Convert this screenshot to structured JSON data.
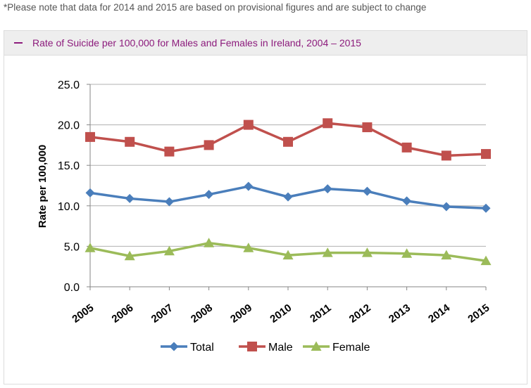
{
  "note": "*Please note that data for 2014 and 2015 are based on provisional figures and are subject to change",
  "panel": {
    "title": "Rate of Suicide per 100,000 for Males and Females in Ireland, 2004 – 2015"
  },
  "icons": {
    "collapse": "minus-icon"
  },
  "colors": {
    "accent": "#8c1b7c",
    "total": "#4a7ebb",
    "male": "#c0504d",
    "female": "#9bbb59"
  },
  "chart_data": {
    "type": "line",
    "x": [
      "2005",
      "2006",
      "2007",
      "2008",
      "2009",
      "2010",
      "2011",
      "2012",
      "2013",
      "2014",
      "2015"
    ],
    "series": [
      {
        "name": "Total",
        "marker": "diamond",
        "color": "#4a7ebb",
        "values": [
          11.6,
          10.9,
          10.5,
          11.4,
          12.4,
          11.1,
          12.1,
          11.8,
          10.6,
          9.9,
          9.7
        ]
      },
      {
        "name": "Male",
        "marker": "square",
        "color": "#c0504d",
        "values": [
          18.5,
          17.9,
          16.7,
          17.5,
          20.0,
          17.9,
          20.2,
          19.7,
          17.2,
          16.2,
          16.4
        ]
      },
      {
        "name": "Female",
        "marker": "triangle",
        "color": "#9bbb59",
        "values": [
          4.8,
          3.8,
          4.4,
          5.4,
          4.8,
          3.9,
          4.2,
          4.2,
          4.1,
          3.9,
          3.2
        ]
      }
    ],
    "ylabel": "Rate per 100,000",
    "xlabel": "",
    "ylim": [
      0,
      25
    ],
    "yticks": [
      "0.0",
      "5.0",
      "10.0",
      "15.0",
      "20.0",
      "25.0"
    ],
    "grid": true,
    "legend_position": "bottom"
  }
}
